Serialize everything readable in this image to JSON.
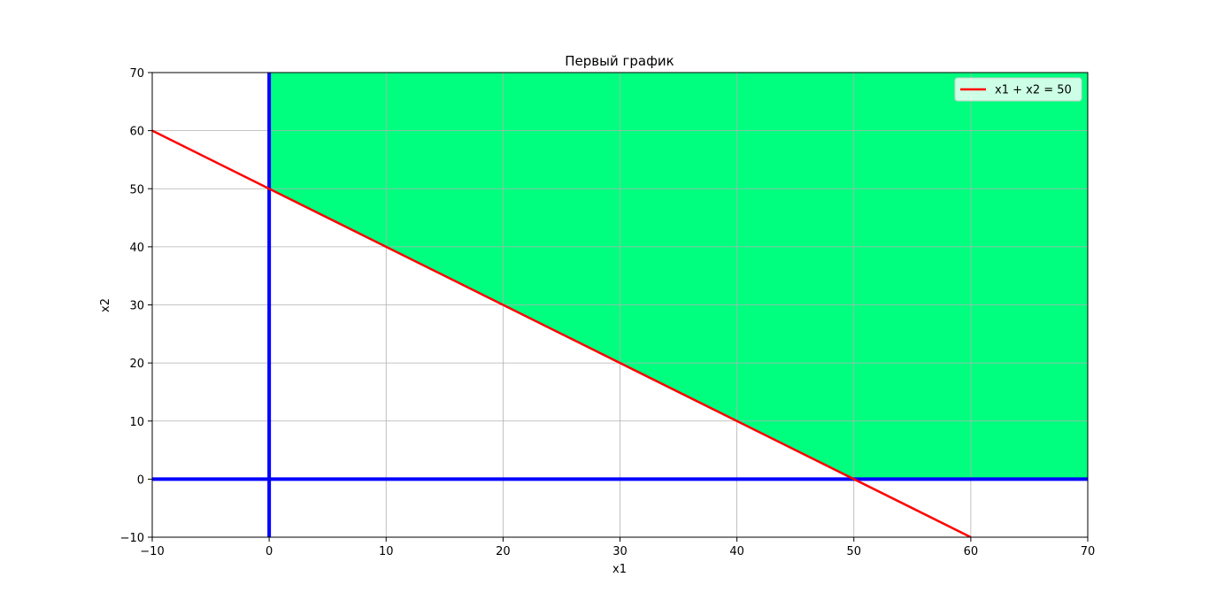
{
  "chart_data": {
    "type": "line",
    "title": "Первый график",
    "xlabel": "x1",
    "ylabel": "x2",
    "xlim": [
      -10,
      70
    ],
    "ylim": [
      -10,
      70
    ],
    "xticks": [
      -10,
      0,
      10,
      20,
      30,
      40,
      50,
      60,
      70
    ],
    "yticks": [
      -10,
      0,
      10,
      20,
      30,
      40,
      50,
      60,
      70
    ],
    "xtick_labels": [
      "−10",
      "0",
      "10",
      "20",
      "30",
      "40",
      "50",
      "60",
      "70"
    ],
    "ytick_labels": [
      "−10",
      "0",
      "10",
      "20",
      "30",
      "40",
      "50",
      "60",
      "70"
    ],
    "grid": true,
    "legend_position": "top-right",
    "series": [
      {
        "name": "x1 + x2 = 50",
        "x": [
          -10,
          60
        ],
        "y": [
          60,
          -10
        ],
        "color": "#ff0000"
      }
    ],
    "axis_lines": [
      {
        "orientation": "vertical",
        "value": 0,
        "color": "#0000ff"
      },
      {
        "orientation": "horizontal",
        "value": 0,
        "color": "#0000ff"
      }
    ],
    "feasible_region": {
      "polygon": [
        [
          0,
          50
        ],
        [
          0,
          70
        ],
        [
          70,
          70
        ],
        [
          70,
          0
        ],
        [
          50,
          0
        ]
      ],
      "color": "#00ff7f"
    }
  }
}
